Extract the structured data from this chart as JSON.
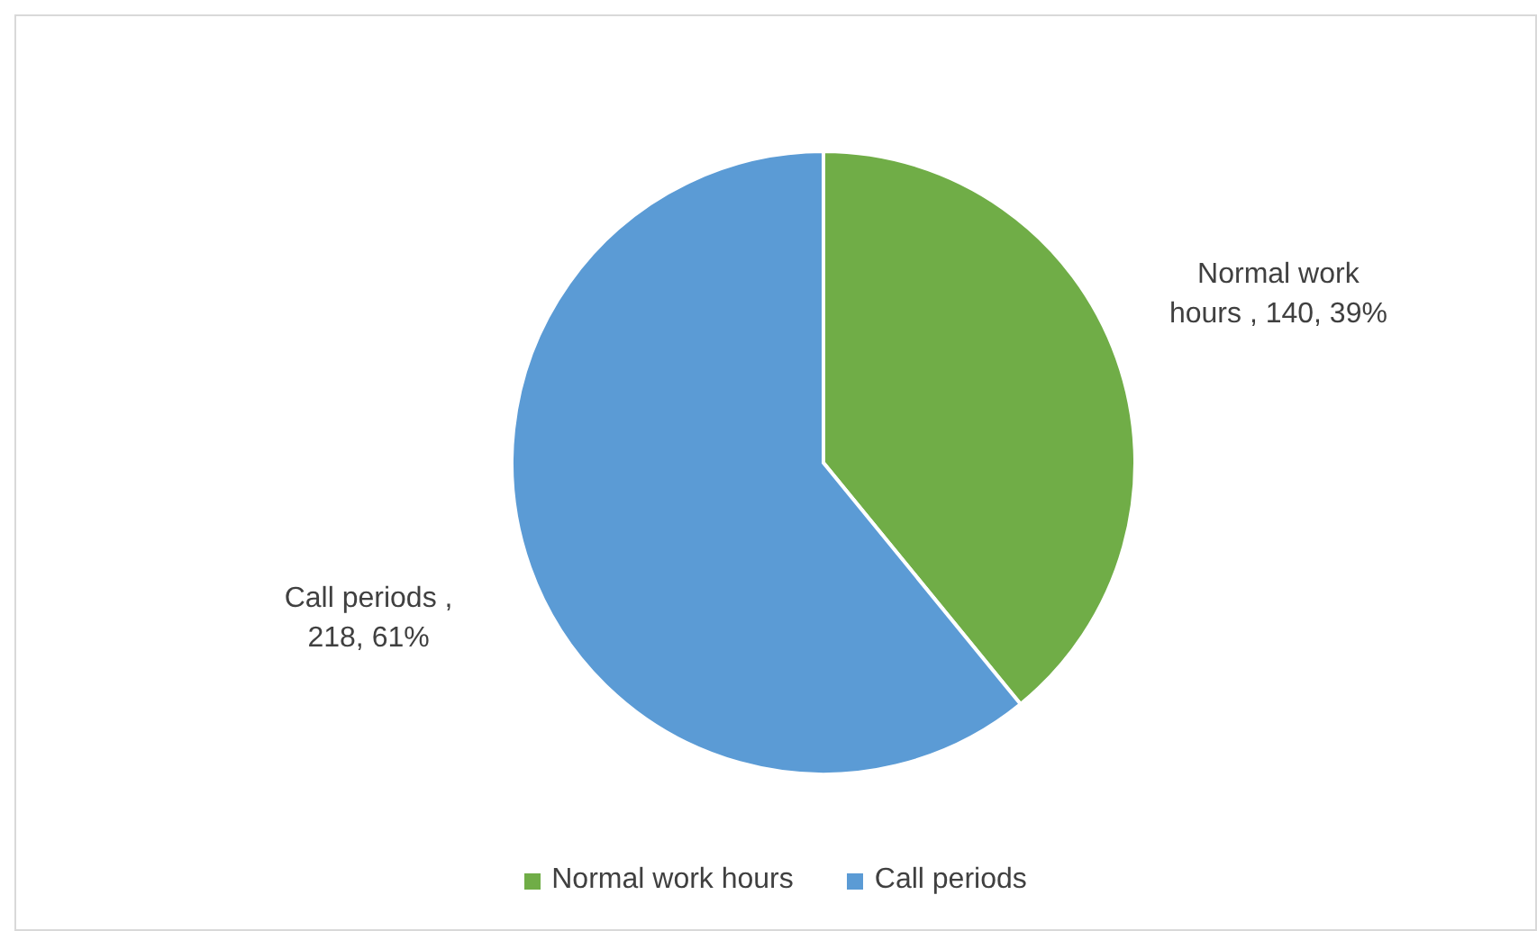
{
  "chart_data": {
    "type": "pie",
    "categories": [
      "Normal work hours",
      "Call periods"
    ],
    "values": [
      140,
      218
    ],
    "colors": [
      "#70ad47",
      "#5b9bd5"
    ],
    "value_labels": [
      "Normal work hours , 140, 39%",
      "Call periods , 218, 61%"
    ],
    "legend": "bottom"
  }
}
